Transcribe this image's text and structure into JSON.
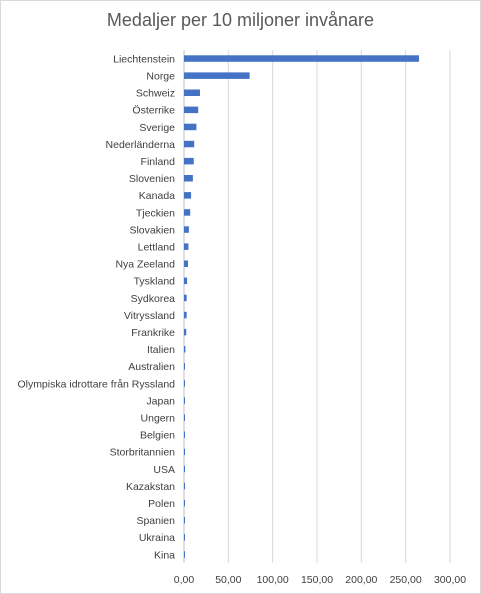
{
  "chart_data": {
    "type": "bar",
    "orientation": "horizontal",
    "title": "Medaljer per 10 miljoner invånare",
    "categories": [
      "Liechtenstein",
      "Norge",
      "Schweiz",
      "Österrike",
      "Sverige",
      "Nederländerna",
      "Finland",
      "Slovenien",
      "Kanada",
      "Tjeckien",
      "Slovakien",
      "Lettland",
      "Nya Zeeland",
      "Tyskland",
      "Sydkorea",
      "Vitryssland",
      "Frankrike",
      "Italien",
      "Australien",
      "Olympiska idrottare från Ryssland",
      "Japan",
      "Ungern",
      "Belgien",
      "Storbritannien",
      "USA",
      "Kazakstan",
      "Polen",
      "Spanien",
      "Ukraina",
      "Kina"
    ],
    "series": [
      {
        "values": [
          265.0,
          74.0,
          18.0,
          16.0,
          14.0,
          11.5,
          11.0,
          10.0,
          8.0,
          7.0,
          5.5,
          5.0,
          4.5,
          3.5,
          3.0,
          3.0,
          2.5,
          1.5,
          1.0,
          1.0,
          1.0,
          1.0,
          1.0,
          0.8,
          0.7,
          0.6,
          0.5,
          0.4,
          0.3,
          0.1
        ]
      }
    ],
    "xlim": [
      0,
      300
    ],
    "xticks": [
      "0,00",
      "50,00",
      "100,00",
      "150,00",
      "200,00",
      "250,00",
      "300,00"
    ],
    "grid": true,
    "bar_color": "#4472c4",
    "gridline_color": "#d9d9d9"
  }
}
